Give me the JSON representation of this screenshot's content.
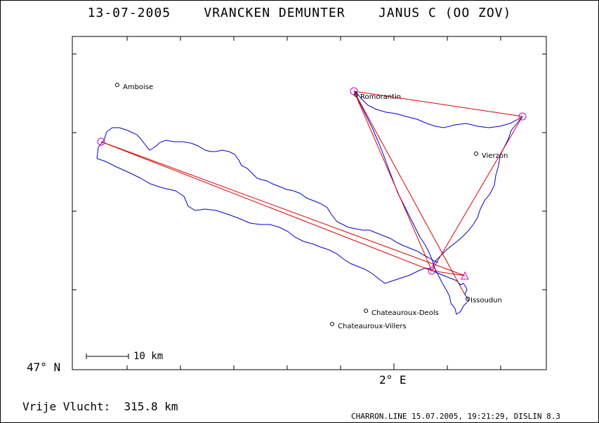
{
  "title": "13-07-2005    VRANCKEN DEMUNTER    JANUS C (OO ZOV)",
  "lat_label": "47° N",
  "lon_label": "2° E",
  "distance_label": "Vrije Vlucht:  315.8 km",
  "footer": "CHARRON.LINE 15.07.2005, 19:21:29, DISLIN 8.3",
  "scale_label": "10 km",
  "places": [
    {
      "name": "Amboise"
    },
    {
      "name": "Romorantin"
    },
    {
      "name": "Vierzon"
    },
    {
      "name": "Issoudun"
    },
    {
      "name": "Chateauroux-Deols"
    },
    {
      "name": "Chateauroux-Villers"
    }
  ],
  "colors": {
    "track": "#0000cc",
    "task": "#dd0000",
    "turnpoint": "#cc00cc",
    "axis": "#000000"
  }
}
